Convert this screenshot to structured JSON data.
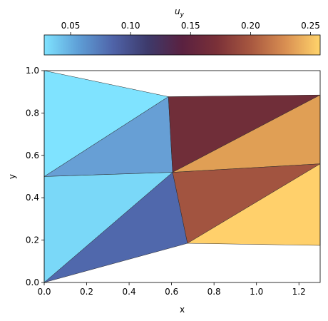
{
  "chart_data": {
    "type": "heatmap",
    "subtype": "triangular mesh (tripcolor)",
    "xlabel": "x",
    "ylabel": "y",
    "xlim": [
      0.0,
      1.3
    ],
    "ylim": [
      0.0,
      1.0
    ],
    "x_ticks": [
      "0.0",
      "0.2",
      "0.4",
      "0.6",
      "0.8",
      "1.0",
      "1.2"
    ],
    "y_ticks": [
      "0.0",
      "0.2",
      "0.4",
      "0.6",
      "0.8",
      "1.0"
    ],
    "grid": false,
    "colorbar": {
      "label_base": "u",
      "label_sub": "y",
      "placement": "top",
      "range": [
        0.028,
        0.258
      ],
      "ticks": [
        "0.05",
        "0.10",
        "0.15",
        "0.20",
        "0.25"
      ],
      "colormap": [
        "#7fe3ff",
        "#5e9ed6",
        "#4f63a8",
        "#3d3a6b",
        "#5a2140",
        "#7a3038",
        "#a85840",
        "#d98f52",
        "#ffd46b"
      ]
    },
    "nodes": [
      [
        0.0,
        0.0
      ],
      [
        0.0,
        0.5
      ],
      [
        0.0,
        1.0
      ],
      [
        0.585,
        0.877
      ],
      [
        0.605,
        0.52
      ],
      [
        0.675,
        0.185
      ],
      [
        1.3,
        0.885
      ],
      [
        1.3,
        0.56
      ],
      [
        1.3,
        0.175
      ]
    ],
    "triangles": [
      {
        "vertices": [
          1,
          2,
          3
        ],
        "value": 0.03,
        "color": "#7fe3ff"
      },
      {
        "vertices": [
          1,
          3,
          4
        ],
        "value": 0.055,
        "color": "#679fd5"
      },
      {
        "vertices": [
          0,
          1,
          4
        ],
        "value": 0.033,
        "color": "#7ad8f8"
      },
      {
        "vertices": [
          0,
          4,
          5
        ],
        "value": 0.085,
        "color": "#5068ac"
      },
      {
        "vertices": [
          3,
          6,
          4
        ],
        "value": 0.155,
        "color": "#702e39"
      },
      {
        "vertices": [
          4,
          6,
          7
        ],
        "value": 0.222,
        "color": "#e09f55"
      },
      {
        "vertices": [
          4,
          7,
          5
        ],
        "value": 0.185,
        "color": "#a25440"
      },
      {
        "vertices": [
          5,
          7,
          8
        ],
        "value": 0.258,
        "color": "#ffd06b"
      }
    ]
  }
}
